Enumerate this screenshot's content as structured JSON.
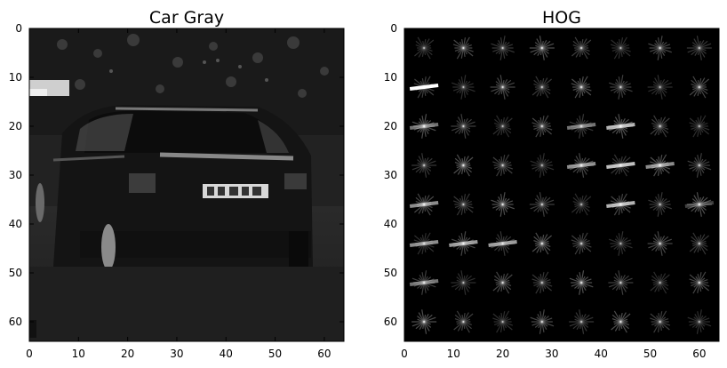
{
  "figure": {
    "panels": [
      {
        "title": "Car Gray",
        "kind": "image"
      },
      {
        "title": "HOG",
        "kind": "hog"
      }
    ]
  },
  "chart_data": [
    {
      "type": "heatmap",
      "title": "Car Gray",
      "xlabel": "",
      "ylabel": "",
      "xlim": [
        0,
        64
      ],
      "ylim": [
        64,
        0
      ],
      "xticks": [
        0,
        10,
        20,
        30,
        40,
        50,
        60
      ],
      "yticks": [
        0,
        10,
        20,
        30,
        40,
        50,
        60
      ],
      "colormap": "gray"
    },
    {
      "type": "heatmap",
      "title": "HOG",
      "xlabel": "",
      "ylabel": "",
      "xlim": [
        0,
        64
      ],
      "ylim": [
        64,
        0
      ],
      "xticks": [
        0,
        10,
        20,
        30,
        40,
        50,
        60
      ],
      "yticks": [
        0,
        10,
        20,
        30,
        40,
        50,
        60
      ],
      "colormap": "gray",
      "cells_per_side": 8,
      "pixels_per_cell": 8
    }
  ]
}
